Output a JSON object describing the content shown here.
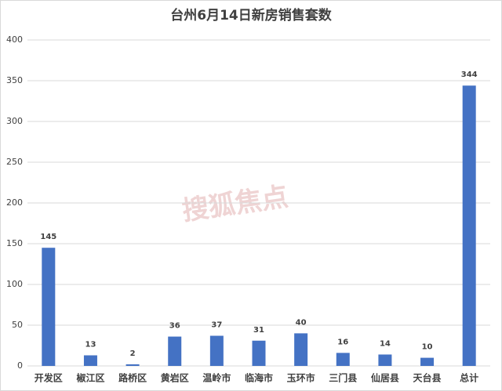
{
  "chart_data": {
    "type": "bar",
    "title": "台州6月14日新房销售套数",
    "watermark": "搜狐焦点",
    "categories": [
      "开发区",
      "椒江区",
      "路桥区",
      "黄岩区",
      "温岭市",
      "临海市",
      "玉环市",
      "三门县",
      "仙居县",
      "天台县",
      "总计"
    ],
    "values": [
      145,
      13,
      2,
      36,
      37,
      31,
      40,
      16,
      14,
      10,
      344
    ],
    "color": "#4472c4",
    "ylim": [
      0,
      400
    ],
    "yticks": [
      0,
      50,
      100,
      150,
      200,
      250,
      300,
      350,
      400
    ],
    "grid": true
  }
}
